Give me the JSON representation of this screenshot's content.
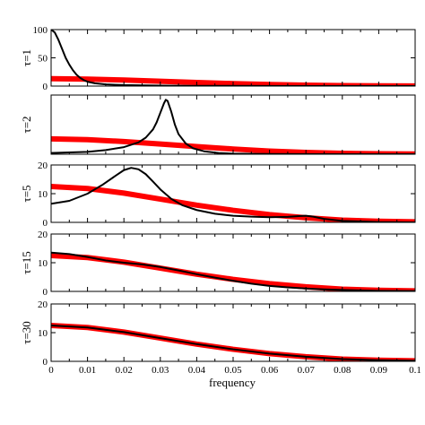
{
  "chart_data": {
    "type": "line",
    "xlabel": "frequency",
    "xlim": [
      0,
      0.1
    ],
    "xticks": [
      0,
      0.01,
      0.02,
      0.03,
      0.04,
      0.05,
      0.06,
      0.07,
      0.08,
      0.09,
      0.1
    ],
    "xtick_labels": [
      "0",
      "0.01",
      "0.02",
      "0.03",
      "0.04",
      "0.05",
      "0.06",
      "0.07",
      "0.08",
      "0.09",
      "0.1"
    ],
    "grid": false,
    "legend": "none",
    "colors": {
      "black_series": "#000000",
      "red_series": "#ff0000"
    },
    "panels": [
      {
        "label": "τ=1",
        "ylim": [
          0,
          100
        ],
        "yticks": [
          0,
          50,
          100
        ],
        "ytick_labels": [
          "0",
          "50",
          "100"
        ],
        "red": {
          "x": [
            0,
            0.01,
            0.02,
            0.03,
            0.04,
            0.05,
            0.06,
            0.07,
            0.08,
            0.09,
            0.1
          ],
          "y": [
            13,
            12.3,
            10.7,
            8.6,
            6.4,
            4.4,
            2.7,
            1.5,
            0.8,
            0.4,
            0.2
          ]
        },
        "black": {
          "x": [
            0,
            0.001,
            0.002,
            0.003,
            0.004,
            0.005,
            0.006,
            0.007,
            0.008,
            0.009,
            0.01,
            0.012,
            0.015,
            0.02,
            0.03,
            0.04,
            0.06,
            0.08,
            0.1
          ],
          "y": [
            100,
            95,
            82,
            66,
            50,
            38,
            28,
            20,
            14.5,
            10.5,
            7.8,
            5,
            3,
            1.7,
            0.8,
            0.5,
            0.2,
            0.1,
            0
          ]
        }
      },
      {
        "label": "τ=2",
        "ylim": [
          0,
          50
        ],
        "yticks": [
          0,
          50
        ],
        "ytick_labels": [
          "",
          ""
        ],
        "red": {
          "x": [
            0,
            0.01,
            0.02,
            0.03,
            0.04,
            0.05,
            0.06,
            0.07,
            0.08,
            0.09,
            0.1
          ],
          "y": [
            13,
            12.3,
            10.7,
            8.6,
            6.4,
            4.4,
            2.7,
            1.5,
            0.8,
            0.4,
            0.2
          ]
        },
        "black": {
          "x": [
            0,
            0.01,
            0.015,
            0.02,
            0.024,
            0.026,
            0.028,
            0.029,
            0.03,
            0.031,
            0.0315,
            0.032,
            0.033,
            0.034,
            0.035,
            0.037,
            0.039,
            0.042,
            0.046,
            0.05,
            0.06,
            0.08,
            0.1
          ],
          "y": [
            1,
            2,
            3.5,
            6,
            10,
            14,
            21,
            27,
            35,
            43,
            46,
            45,
            36,
            25,
            17,
            9,
            5,
            2.5,
            1,
            0.5,
            0.2,
            0,
            0
          ]
        }
      },
      {
        "label": "τ=5",
        "ylim": [
          0,
          20
        ],
        "yticks": [
          0,
          10,
          20
        ],
        "ytick_labels": [
          "0",
          "10",
          "20"
        ],
        "red": {
          "x": [
            0,
            0.01,
            0.02,
            0.03,
            0.04,
            0.05,
            0.06,
            0.07,
            0.08,
            0.09,
            0.1
          ],
          "y": [
            12.5,
            11.8,
            10.2,
            8.1,
            6,
            4.2,
            2.7,
            1.6,
            0.8,
            0.4,
            0.2
          ]
        },
        "black": {
          "x": [
            0,
            0.005,
            0.01,
            0.014,
            0.018,
            0.02,
            0.022,
            0.024,
            0.026,
            0.028,
            0.03,
            0.033,
            0.036,
            0.04,
            0.045,
            0.05,
            0.055,
            0.06,
            0.065,
            0.068,
            0.07,
            0.072,
            0.075,
            0.08,
            0.09,
            0.1
          ],
          "y": [
            6.5,
            7.5,
            10,
            13,
            16.5,
            18.2,
            19,
            18.5,
            16.8,
            14.2,
            11.5,
            8.2,
            6,
            4.3,
            3,
            2.3,
            2,
            1.8,
            1.9,
            2.2,
            2.3,
            2,
            1.2,
            0.5,
            0.1,
            0
          ]
        }
      },
      {
        "label": "τ=15",
        "ylim": [
          0,
          20
        ],
        "yticks": [
          0,
          10,
          20
        ],
        "ytick_labels": [
          "0",
          "10",
          "20"
        ],
        "red": {
          "x": [
            0,
            0.01,
            0.02,
            0.03,
            0.04,
            0.05,
            0.06,
            0.07,
            0.08,
            0.09,
            0.1
          ],
          "y": [
            12.5,
            11.8,
            10.2,
            8.1,
            6,
            4.2,
            2.7,
            1.6,
            0.8,
            0.4,
            0.2
          ]
        },
        "black": {
          "x": [
            0,
            0.005,
            0.01,
            0.015,
            0.02,
            0.025,
            0.03,
            0.035,
            0.04,
            0.045,
            0.05,
            0.055,
            0.06,
            0.065,
            0.07,
            0.075,
            0.08,
            0.09,
            0.1
          ],
          "y": [
            13.5,
            13,
            12,
            10.8,
            10,
            9.4,
            8.5,
            7.3,
            6,
            4.8,
            3.7,
            2.7,
            1.9,
            1.4,
            1,
            0.7,
            0.5,
            0.2,
            0.1
          ]
        }
      },
      {
        "label": "τ=30",
        "ylim": [
          0,
          20
        ],
        "yticks": [
          0,
          10,
          20
        ],
        "ytick_labels": [
          "0",
          "10",
          "20"
        ],
        "red": {
          "x": [
            0,
            0.01,
            0.02,
            0.03,
            0.04,
            0.05,
            0.06,
            0.07,
            0.08,
            0.09,
            0.1
          ],
          "y": [
            12.5,
            11.8,
            10.2,
            8.1,
            6,
            4.2,
            2.7,
            1.6,
            0.8,
            0.4,
            0.2
          ]
        },
        "black": {
          "x": [
            0,
            0.01,
            0.02,
            0.03,
            0.04,
            0.05,
            0.06,
            0.07,
            0.08,
            0.09,
            0.1
          ],
          "y": [
            12.5,
            11.8,
            10.2,
            8.1,
            6,
            4.2,
            2.7,
            1.6,
            0.8,
            0.4,
            0.2
          ]
        }
      }
    ]
  }
}
